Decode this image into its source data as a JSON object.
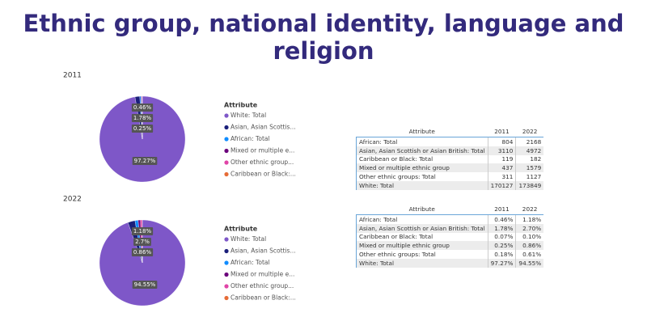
{
  "title": "Ethnic group, national identity, language and religion",
  "chart_data": [
    {
      "type": "pie",
      "title": "2011",
      "legend_title": "Attribute",
      "categories": [
        "White: Total",
        "Asian, Asian Scottis...",
        "African: Total",
        "Mixed or multiple e...",
        "Other ethnic group...",
        "Caribbean or Black:..."
      ],
      "values": [
        97.27,
        1.78,
        0.46,
        0.25,
        0.18,
        0.07
      ],
      "value_labels": [
        "97.27%",
        "1.78%",
        "0.46%",
        "0.25%",
        null,
        null
      ],
      "colors": [
        "#7e57c8",
        "#1b1f7a",
        "#118dff",
        "#6b007b",
        "#e044a7",
        "#e66c37"
      ]
    },
    {
      "type": "pie",
      "title": "2022",
      "legend_title": "Attribute",
      "categories": [
        "White: Total",
        "Asian, Asian Scottis...",
        "African: Total",
        "Mixed or multiple e...",
        "Other ethnic group...",
        "Caribbean or Black:..."
      ],
      "values": [
        94.55,
        2.7,
        1.18,
        0.86,
        0.61,
        0.1
      ],
      "value_labels": [
        "94.55%",
        "2.7%",
        "1.18%",
        "0.86%",
        null,
        null
      ],
      "colors": [
        "#7e57c8",
        "#1b1f7a",
        "#118dff",
        "#6b007b",
        "#e044a7",
        "#e66c37"
      ]
    }
  ],
  "tables": [
    {
      "header": [
        "Attribute",
        "2011",
        "2022"
      ],
      "rows": [
        [
          "African: Total",
          804,
          2168
        ],
        [
          "Asian, Asian Scottish or Asian British: Total",
          3110,
          4972
        ],
        [
          "Caribbean or Black: Total",
          119,
          182
        ],
        [
          "Mixed or multiple ethnic group",
          437,
          1579
        ],
        [
          "Other ethnic groups: Total",
          311,
          1127
        ],
        [
          "White: Total",
          170127,
          173849
        ]
      ]
    },
    {
      "header": [
        "Attribute",
        "2011",
        "2022"
      ],
      "rows": [
        [
          "African: Total",
          "0.46%",
          "1.18%"
        ],
        [
          "Asian, Asian Scottish or Asian British: Total",
          "1.78%",
          "2.70%"
        ],
        [
          "Caribbean or Black: Total",
          "0.07%",
          "0.10%"
        ],
        [
          "Mixed or multiple ethnic group",
          "0.25%",
          "0.86%"
        ],
        [
          "Other ethnic groups: Total",
          "0.18%",
          "0.61%"
        ],
        [
          "White: Total",
          "97.27%",
          "94.55%"
        ]
      ]
    }
  ]
}
